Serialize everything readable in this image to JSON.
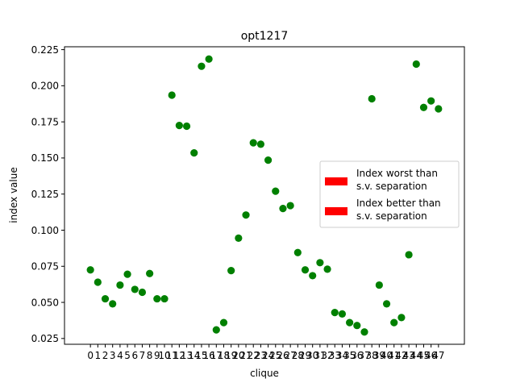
{
  "chart_data": {
    "type": "scatter",
    "title": "opt1217",
    "xlabel": "clique",
    "ylabel": "index value",
    "xlim": [
      -3.5,
      50.5
    ],
    "ylim": [
      0.021,
      0.227
    ],
    "x_ticks": [
      0,
      1,
      2,
      3,
      4,
      5,
      6,
      7,
      8,
      9,
      10,
      11,
      12,
      13,
      14,
      15,
      16,
      17,
      18,
      19,
      20,
      21,
      22,
      23,
      24,
      25,
      26,
      27,
      28,
      29,
      30,
      31,
      32,
      33,
      34,
      35,
      36,
      37,
      38,
      39,
      40,
      41,
      42,
      43,
      44,
      45,
      46,
      47
    ],
    "y_ticks": [
      0.025,
      0.05,
      0.075,
      0.1,
      0.125,
      0.15,
      0.175,
      0.2,
      0.225
    ],
    "y_tick_labels": [
      "0.025",
      "0.050",
      "0.075",
      "0.100",
      "0.125",
      "0.150",
      "0.175",
      "0.200",
      "0.225"
    ],
    "grid": false,
    "legend_position": "center-right",
    "point_color": "#008000",
    "series": [
      {
        "x": [
          0,
          1,
          2,
          3,
          4,
          5,
          6,
          7,
          8,
          9,
          10,
          11,
          12,
          13,
          14,
          15,
          16,
          17,
          18,
          19,
          20,
          21,
          22,
          23,
          24,
          25,
          26,
          27,
          28,
          29,
          30,
          31,
          32,
          33,
          34,
          35,
          36,
          37,
          38,
          39,
          40,
          41,
          42,
          43,
          44,
          45,
          46,
          47
        ],
        "values": [
          0.0725,
          0.064,
          0.0525,
          0.049,
          0.062,
          0.0695,
          0.059,
          0.057,
          0.07,
          0.0525,
          0.0525,
          0.1935,
          0.1725,
          0.172,
          0.1535,
          0.2135,
          0.2185,
          0.031,
          0.036,
          0.072,
          0.0945,
          0.1105,
          0.1605,
          0.1595,
          0.1485,
          0.127,
          0.115,
          0.117,
          0.0845,
          0.0725,
          0.0685,
          0.0775,
          0.073,
          0.043,
          0.042,
          0.036,
          0.034,
          0.0295,
          0.191,
          0.062,
          0.049,
          0.036,
          0.0395,
          0.083,
          0.215,
          0.185,
          0.1895,
          0.184
        ]
      }
    ],
    "legend": [
      {
        "label_line1": "Index worst than",
        "label_line2": "s.v. separation",
        "color": "#ff0000"
      },
      {
        "label_line1": "Index better than",
        "label_line2": "s.v. separation",
        "color": "#ff0000"
      }
    ]
  }
}
